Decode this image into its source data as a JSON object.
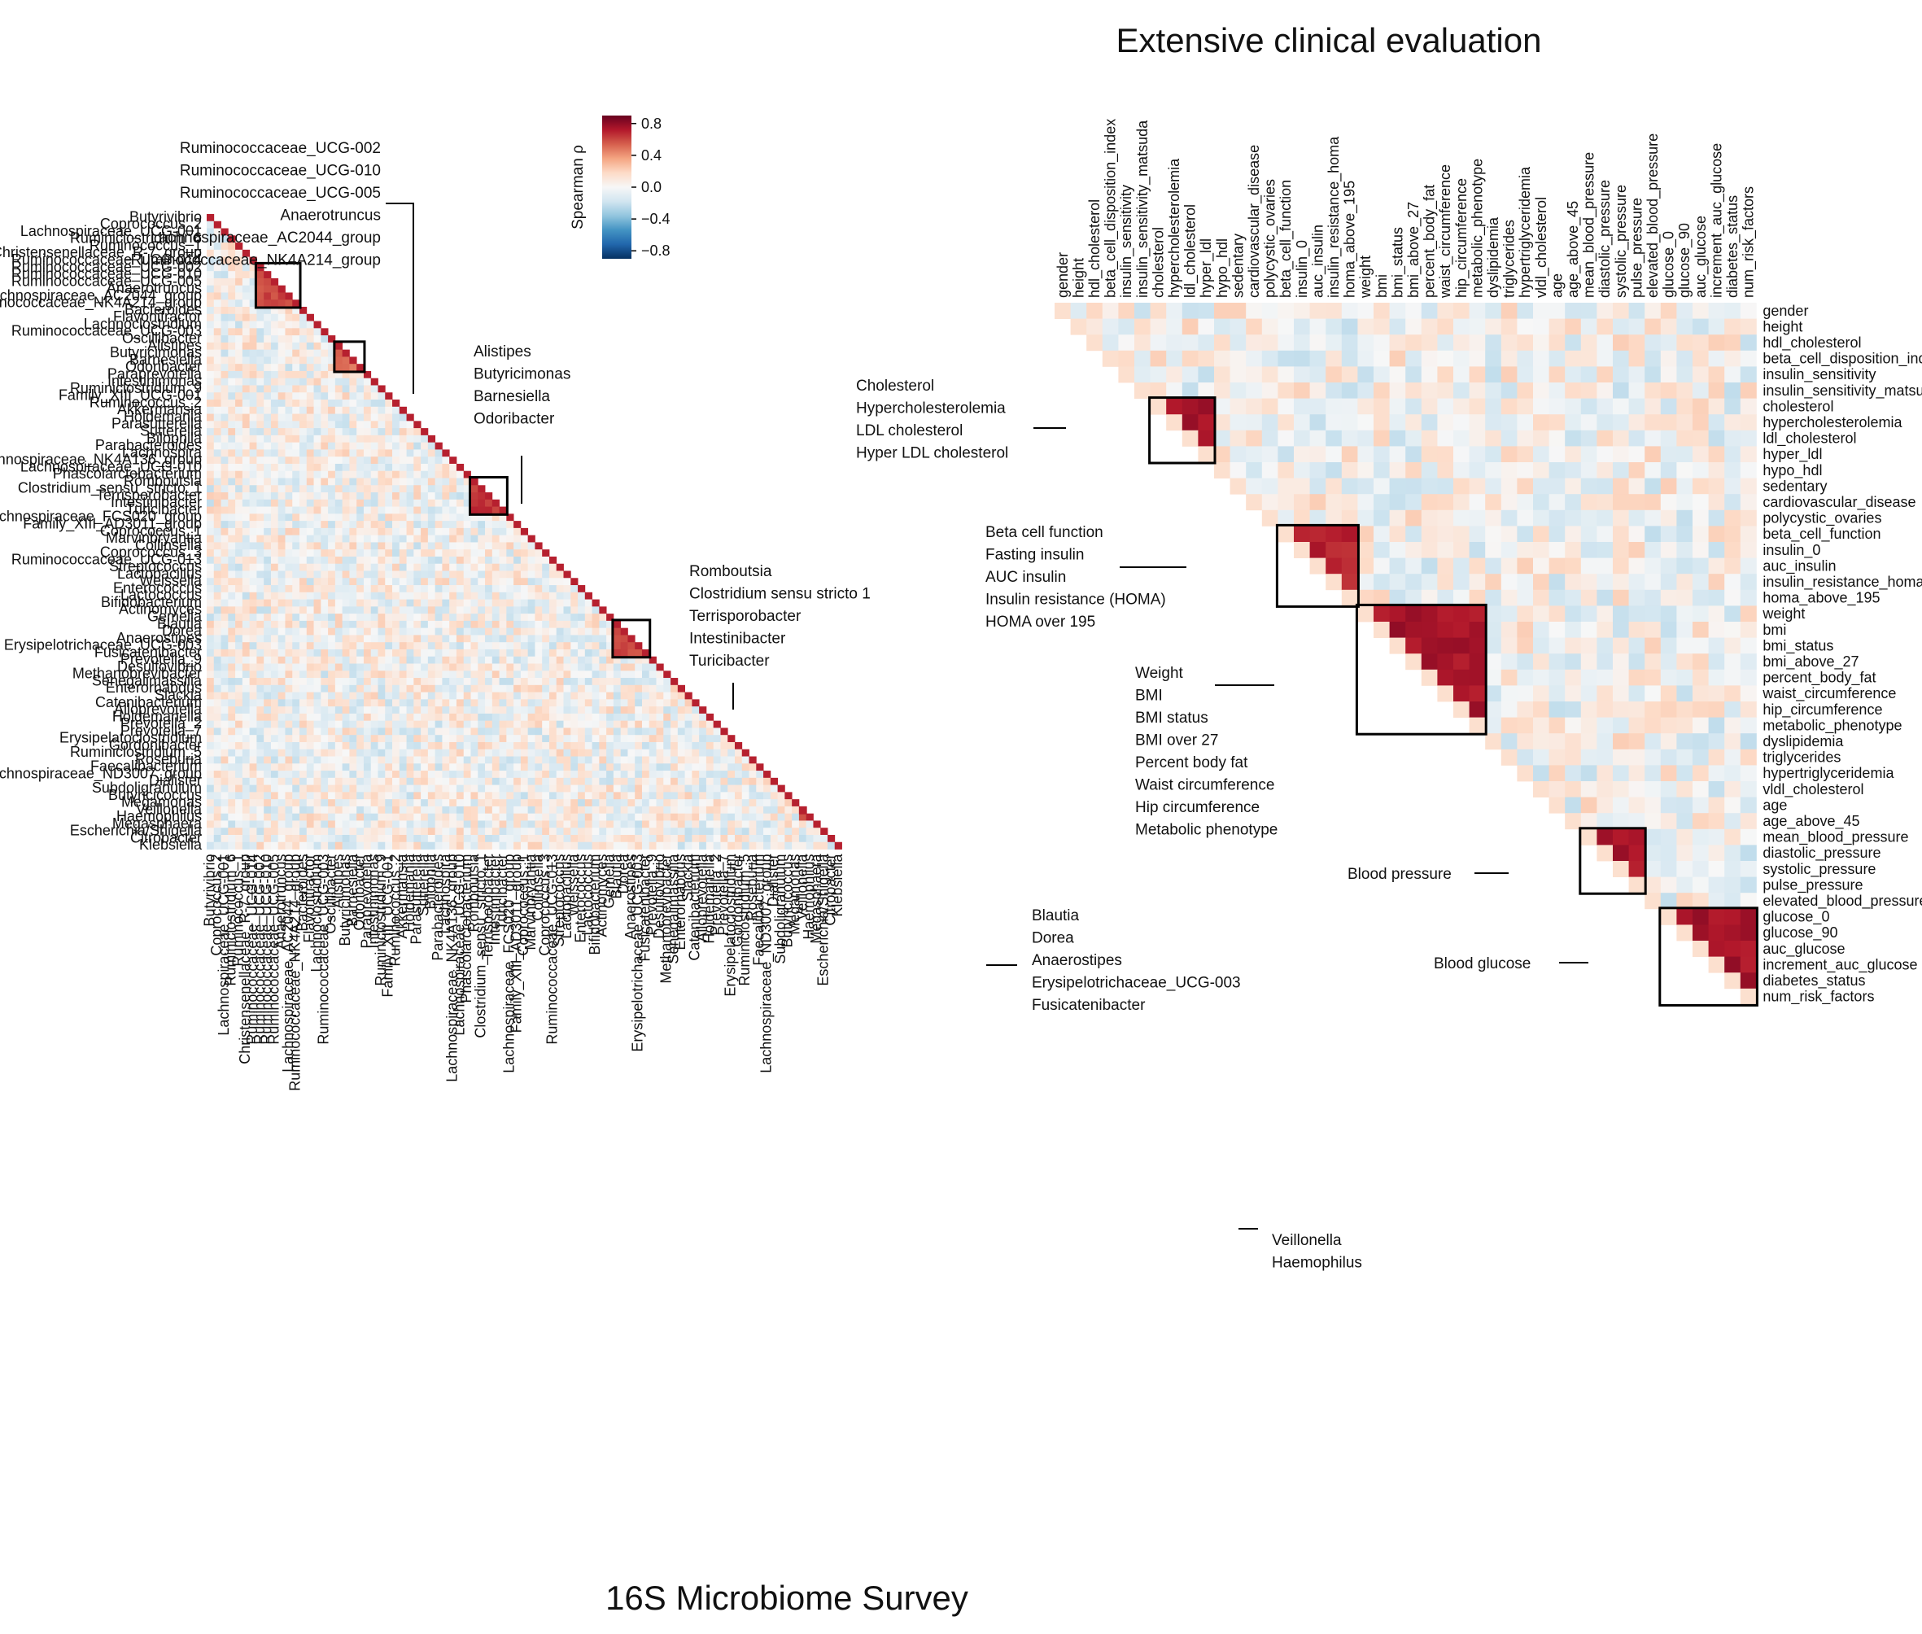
{
  "chart_data": [
    {
      "type": "heatmap",
      "title": "16S Microbiome Survey",
      "triangle": "lower",
      "labels": [
        "Butyrivibrio",
        "Coprococcus_2",
        "Lachnospiraceae_UCG-001",
        "Ruminiclostridium_6",
        "Ruminococcus_1",
        "Christensenellaceae_R-7_group",
        "Ruminococcaceae_UCG-014",
        "Ruminococcaceae_UCG-002",
        "Ruminococcaceae_UCG-010",
        "Ruminococcaceae_UCG-005",
        "Anaerotruncus",
        "Lachnospiraceae_AC2044_group",
        "Ruminococcaceae_NK4A214_group",
        "Bacteroides",
        "Flavonifractor",
        "Lachnoclostridium",
        "Ruminococcaceae_UCG-003",
        "Oscillibacter",
        "Alistipes",
        "Butyricimonas",
        "Barnesiella",
        "Odoribacter",
        "Paraprevotella",
        "Intestinimonas",
        "Ruminiclostridium_9",
        "Family_XIII_UCG-001",
        "Ruminococcus_2",
        "Akkermansia",
        "Holdemania",
        "Parasutterella",
        "Sutterella",
        "Bilophila",
        "Parabacteroides",
        "Lachnospira",
        "Lachnospiraceae_NK4A136_group",
        "Lachnospiraceae_UCG-010",
        "Phascolarctobacterium",
        "Romboutsia",
        "Clostridium_sensu_stricto_1",
        "Terrisporobacter",
        "Intestinibacter",
        "Turicibacter",
        "Lachnospiraceae_FCS020_group",
        "Family_XIII_AD3011_group",
        "Coprococcus_1",
        "Marvinbryantia",
        "Collinsella",
        "Coprococcus_3",
        "Ruminococcaceae_UCG-013",
        "Streptococcus",
        "Lactobacillus",
        "Weissella",
        "Enterococcus",
        "Lactococcus",
        "Bifidobacterium",
        "Actinomyces",
        "Gemella",
        "Blautia",
        "Dorea",
        "Anaerostipes",
        "Erysipelotrichaceae_UCG-003",
        "Fusicatenibacter",
        "Prevotella_9",
        "Desulfovibrio",
        "Methanobrevibacter",
        "Senegalimassilia",
        "Enterorhabdus",
        "Slackia",
        "Catenibacterium",
        "Alloprevotella",
        "Holdemanella",
        "Prevotella_2",
        "Prevotella_7",
        "Erysipelatoclostridium",
        "Gordonibacter",
        "Ruminiclostridium_5",
        "Roseburia",
        "Faecalibacterium",
        "Lachnospiraceae_ND3007_group",
        "Dialister",
        "Subdoligranulum",
        "Butyricicoccus",
        "Megamonas",
        "Veillonella",
        "Haemophilus",
        "Megasphaera",
        "Escherichia/Shigella",
        "Citrobacter",
        "Klebsiella"
      ],
      "clusters": [
        {
          "members": [
            "Ruminococcaceae_UCG-002",
            "Ruminococcaceae_UCG-010",
            "Ruminococcaceae_UCG-005",
            "Anaerotruncus",
            "Lachnospiraceae_AC2044_group",
            "Ruminococcaceae_NK4A214_group"
          ],
          "rho": 0.6
        },
        {
          "members": [
            "Alistipes",
            "Butyricimonas",
            "Barnesiella",
            "Odoribacter"
          ],
          "rho": 0.5
        },
        {
          "members": [
            "Romboutsia",
            "Clostridium_sensu_stricto_1",
            "Terrisporobacter",
            "Intestinibacter",
            "Turicibacter"
          ],
          "rho": 0.65
        },
        {
          "members": [
            "Blautia",
            "Dorea",
            "Anaerostipes",
            "Erysipelotrichaceae_UCG-003",
            "Fusicatenibacter"
          ],
          "rho": 0.6
        },
        {
          "members": [
            "Veillonella",
            "Haemophilus"
          ],
          "rho": 0.6
        }
      ]
    },
    {
      "type": "heatmap",
      "title": "Extensive clinical evaluation",
      "triangle": "upper",
      "labels": [
        "gender",
        "height",
        "hdl_cholesterol",
        "beta_cell_disposition_index",
        "insulin_sensitivity",
        "insulin_sensitivity_matsuda",
        "cholesterol",
        "hypercholesterolemia",
        "ldl_cholesterol",
        "hyper_ldl",
        "hypo_hdl",
        "sedentary",
        "cardiovascular_disease",
        "polycystic_ovaries",
        "beta_cell_function",
        "insulin_0",
        "auc_insulin",
        "insulin_resistance_homa",
        "homa_above_195",
        "weight",
        "bmi",
        "bmi_status",
        "bmi_above_27",
        "percent_body_fat",
        "waist_circumference",
        "hip_circumference",
        "metabolic_phenotype",
        "dyslipidemia",
        "triglycerides",
        "hypertriglyceridemia",
        "vldl_cholesterol",
        "age",
        "age_above_45",
        "mean_blood_pressure",
        "diastolic_pressure",
        "systolic_pressure",
        "pulse_pressure",
        "elevated_blood_pressure",
        "glucose_0",
        "glucose_90",
        "auc_glucose",
        "increment_auc_glucose",
        "diabetes_status",
        "num_risk_factors"
      ],
      "clusters": [
        {
          "members": [
            "cholesterol",
            "hypercholesterolemia",
            "ldl_cholesterol",
            "hyper_ldl"
          ],
          "rho": 0.75
        },
        {
          "members": [
            "beta_cell_function",
            "insulin_0",
            "auc_insulin",
            "insulin_resistance_homa",
            "homa_above_195"
          ],
          "rho": 0.7
        },
        {
          "members": [
            "weight",
            "bmi",
            "bmi_status",
            "bmi_above_27",
            "percent_body_fat",
            "waist_circumference",
            "hip_circumference",
            "metabolic_phenotype"
          ],
          "rho": 0.75
        },
        {
          "members": [
            "mean_blood_pressure",
            "diastolic_pressure",
            "systolic_pressure",
            "pulse_pressure"
          ],
          "rho": 0.75
        },
        {
          "members": [
            "glucose_0",
            "glucose_90",
            "auc_glucose",
            "increment_auc_glucose",
            "diabetes_status",
            "num_risk_factors"
          ],
          "rho": 0.75
        }
      ]
    }
  ],
  "colorbar": {
    "label": "Spearman ρ",
    "range": [
      -0.9,
      0.9
    ],
    "ticks": [
      "0.8",
      "0.4",
      "0.0",
      "−0.4",
      "−0.8"
    ],
    "colors": [
      "#053061",
      "#2166ac",
      "#4393c3",
      "#92c5de",
      "#d1e5f0",
      "#f7f7f7",
      "#fddbc7",
      "#f4a582",
      "#d6604d",
      "#b2182b",
      "#67001f"
    ]
  },
  "annotations": {
    "micro": [
      {
        "lines": [
          "Ruminococcaceae_UCG-002",
          "Ruminococcaceae_UCG-010",
          "Ruminococcaceae_UCG-005",
          "Anaerotruncus",
          "Lachnospiraceae_AC2044_group",
          "Ruminococcaceae_NK4A214_group"
        ]
      },
      {
        "lines": [
          "Alistipes",
          "Butyricimonas",
          "Barnesiella",
          "Odoribacter"
        ]
      },
      {
        "lines": [
          "Romboutsia",
          "Clostridium sensu stricto 1",
          "Terrisporobacter",
          "Intestinibacter",
          "Turicibacter"
        ]
      },
      {
        "lines": [
          "Blautia",
          "Dorea",
          "Anaerostipes",
          "Erysipelotrichaceae_UCG-003",
          "Fusicatenibacter"
        ]
      },
      {
        "lines": [
          "Veillonella",
          "Haemophilus"
        ]
      }
    ],
    "clin": [
      {
        "lines": [
          "Cholesterol",
          "Hypercholesterolemia",
          "LDL cholesterol",
          "Hyper LDL cholesterol"
        ]
      },
      {
        "lines": [
          "Beta cell function",
          "Fasting insulin",
          "AUC insulin",
          "Insulin resistance (HOMA)",
          "HOMA over 195"
        ]
      },
      {
        "lines": [
          "Weight",
          "BMI",
          "BMI status",
          "BMI over 27",
          "Percent body fat",
          "Waist circumference",
          "Hip circumference",
          "Metabolic phenotype"
        ]
      },
      {
        "lines": [
          "Blood pressure"
        ]
      },
      {
        "lines": [
          "Blood glucose"
        ]
      }
    ]
  }
}
